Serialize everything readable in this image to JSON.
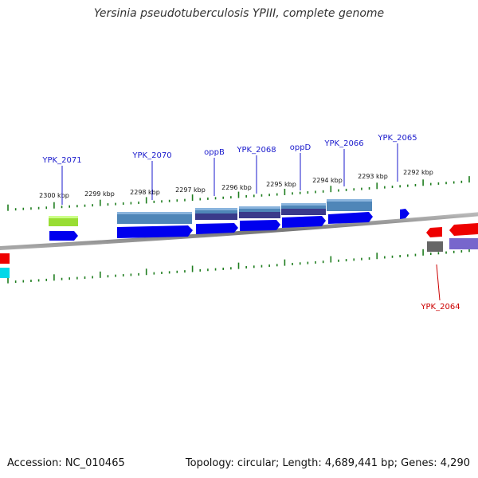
{
  "title": "Yersinia pseudotuberculosis YPIII, complete genome",
  "footer": {
    "accession": "Accession: NC_010465",
    "summary": "Topology: circular; Length: 4,689,441 bp; Genes: 4,290"
  },
  "ticks": [
    "2300 kbp",
    "2299 kbp",
    "2298 kbp",
    "2297 kbp",
    "2296 kbp",
    "2295 kbp",
    "2294 kbp",
    "2293 kbp",
    "2292 kbp"
  ],
  "genes": {
    "forward": [
      "YPK_2071",
      "YPK_2070",
      "oppB",
      "YPK_2068",
      "oppD",
      "YPK_2066",
      "YPK_2065"
    ],
    "reverse": [
      "YPK_2064"
    ]
  },
  "colors": {
    "cds": "#0000ee",
    "cds_dark": "#0000aa",
    "feature": "#4f86b8",
    "feature_dark": "#3a3a8a",
    "label_forward": "#1a1acc",
    "label_reverse": "#cc0000",
    "tick": "#1e7d1e",
    "backbone": "#888888",
    "lime": "#99dd33",
    "red": "#ee0000",
    "gray": "#666666",
    "purple": "#7766cc",
    "cyan": "#00d8e8"
  }
}
